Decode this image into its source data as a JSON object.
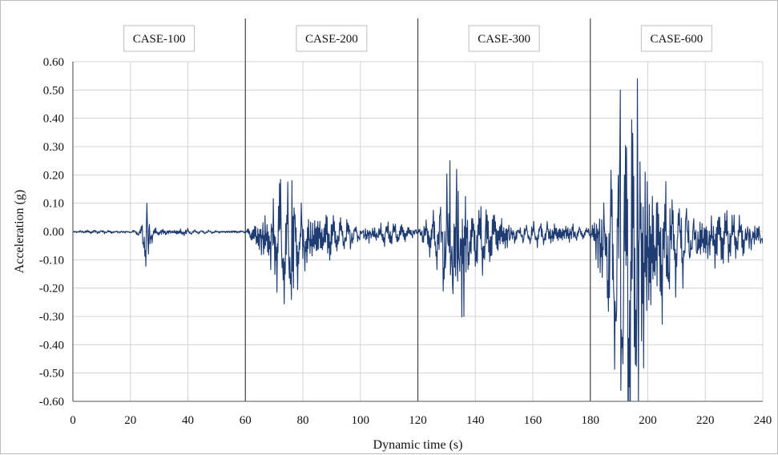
{
  "chart_data": {
    "type": "line",
    "xlabel": "Dynamic time (s)",
    "ylabel": "Acceleration (g)",
    "xlim": [
      0,
      240
    ],
    "ylim": [
      -0.6,
      0.6
    ],
    "x_ticks": [
      0,
      20,
      40,
      60,
      80,
      100,
      120,
      140,
      160,
      180,
      200,
      220,
      240
    ],
    "x_tick_labels": [
      "0",
      "20",
      "40",
      "60",
      "80",
      "100",
      "120",
      "140",
      "160",
      "180",
      "200",
      "220",
      "240"
    ],
    "y_ticks": [
      0.6,
      0.5,
      0.4,
      0.3,
      0.2,
      0.1,
      0.0,
      -0.1,
      -0.2,
      -0.3,
      -0.4,
      -0.5,
      -0.6
    ],
    "y_tick_labels": [
      "0.60",
      "0.50",
      "0.40",
      "0.30",
      "0.20",
      "0.10",
      "0.00",
      "-0.10",
      "-0.20",
      "-0.30",
      "-0.40",
      "-0.50",
      "-0.60"
    ],
    "grid": true,
    "line_color": "#1f3d73",
    "segment_boundaries": [
      60,
      120,
      180
    ],
    "case_labels": [
      {
        "label": "CASE-100",
        "x_center": 30
      },
      {
        "label": "CASE-200",
        "x_center": 90
      },
      {
        "label": "CASE-300",
        "x_center": 150
      },
      {
        "label": "CASE-600",
        "x_center": 210
      }
    ],
    "segments": [
      {
        "label": "CASE-100",
        "x_range": [
          0,
          60
        ],
        "envelope": [
          [
            0,
            0.003
          ],
          [
            20,
            0.005
          ],
          [
            22,
            0.008
          ],
          [
            24,
            0.025
          ],
          [
            25,
            0.06
          ],
          [
            26,
            0.095
          ],
          [
            27,
            0.03
          ],
          [
            28,
            0.015
          ],
          [
            30,
            0.008
          ],
          [
            34,
            0.006
          ],
          [
            39,
            0.01
          ],
          [
            42,
            0.006
          ],
          [
            50,
            0.004
          ],
          [
            60,
            0.003
          ]
        ],
        "peaks": [
          {
            "x": 25.8,
            "y": 0.1
          },
          {
            "x": 26.3,
            "y": -0.08
          }
        ]
      },
      {
        "label": "CASE-200",
        "x_range": [
          60,
          120
        ],
        "envelope": [
          [
            60,
            0.004
          ],
          [
            62,
            0.02
          ],
          [
            66,
            0.06
          ],
          [
            70,
            0.12
          ],
          [
            73,
            0.16
          ],
          [
            76,
            0.18
          ],
          [
            78,
            0.12
          ],
          [
            82,
            0.09
          ],
          [
            86,
            0.07
          ],
          [
            92,
            0.04
          ],
          [
            100,
            0.035
          ],
          [
            106,
            0.03
          ],
          [
            112,
            0.025
          ],
          [
            116,
            0.02
          ],
          [
            120,
            0.01
          ]
        ],
        "peaks": [
          {
            "x": 71.8,
            "y": 0.17
          },
          {
            "x": 76.2,
            "y": 0.18
          },
          {
            "x": 76.8,
            "y": -0.2
          },
          {
            "x": 73.8,
            "y": -0.15
          }
        ]
      },
      {
        "label": "CASE-300",
        "x_range": [
          120,
          180
        ],
        "envelope": [
          [
            120,
            0.006
          ],
          [
            123,
            0.03
          ],
          [
            127,
            0.08
          ],
          [
            130,
            0.18
          ],
          [
            132,
            0.25
          ],
          [
            134,
            0.24
          ],
          [
            136,
            0.16
          ],
          [
            138,
            0.1
          ],
          [
            142,
            0.08
          ],
          [
            148,
            0.05
          ],
          [
            156,
            0.035
          ],
          [
            164,
            0.03
          ],
          [
            172,
            0.025
          ],
          [
            180,
            0.012
          ]
        ],
        "peaks": [
          {
            "x": 131.2,
            "y": 0.25
          },
          {
            "x": 133.5,
            "y": 0.22
          },
          {
            "x": 136.0,
            "y": -0.3
          },
          {
            "x": 132.3,
            "y": -0.22
          }
        ]
      },
      {
        "label": "CASE-600",
        "x_range": [
          180,
          240
        ],
        "envelope": [
          [
            180,
            0.01
          ],
          [
            182,
            0.08
          ],
          [
            185,
            0.18
          ],
          [
            188,
            0.3
          ],
          [
            190,
            0.42
          ],
          [
            192,
            0.45
          ],
          [
            194,
            0.5
          ],
          [
            196,
            0.42
          ],
          [
            198,
            0.28
          ],
          [
            202,
            0.2
          ],
          [
            208,
            0.14
          ],
          [
            214,
            0.1
          ],
          [
            222,
            0.07
          ],
          [
            230,
            0.06
          ],
          [
            240,
            0.04
          ]
        ],
        "peaks": [
          {
            "x": 190.5,
            "y": 0.5
          },
          {
            "x": 196.4,
            "y": 0.54
          },
          {
            "x": 196.8,
            "y": -0.6
          },
          {
            "x": 195.6,
            "y": -0.47
          },
          {
            "x": 191.0,
            "y": -0.41
          }
        ]
      }
    ]
  }
}
